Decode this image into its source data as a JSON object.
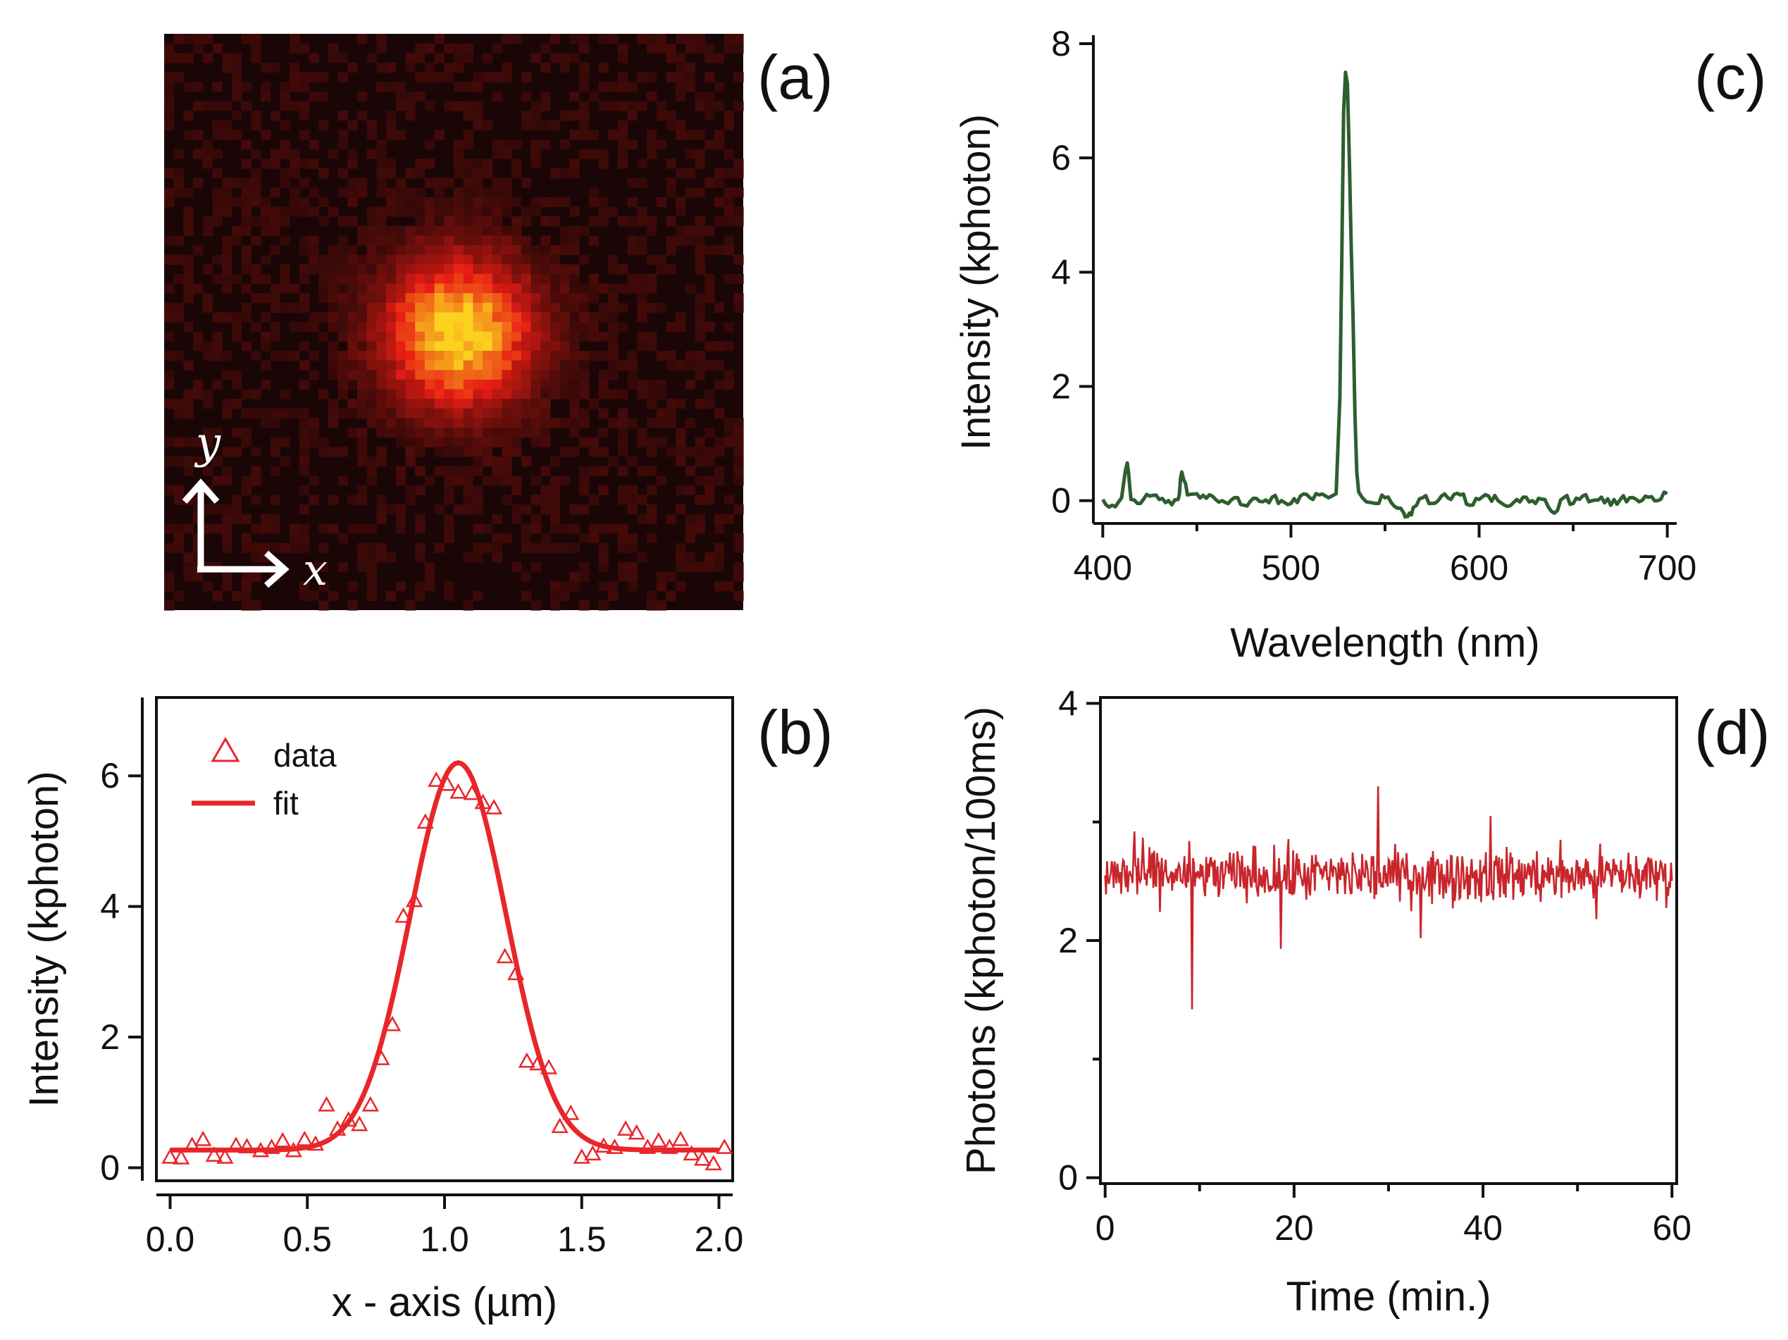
{
  "panels": {
    "a": {
      "label": "(a)"
    },
    "b": {
      "label": "(b)"
    },
    "c": {
      "label": "(c)"
    },
    "d": {
      "label": "(d)"
    }
  },
  "image_a": {
    "y_label": "y",
    "x_label": "x",
    "grid_size": 60,
    "spot_center": [
      0.51,
      0.52
    ],
    "spot_sigma": 0.085,
    "colors": {
      "background": "#1a0606",
      "mid": "#e81c14",
      "peak": "#fbd21e"
    }
  },
  "chart_data": [
    {
      "type": "scatter",
      "panel": "b",
      "xlabel": "x - axis (µm)",
      "ylabel": "Intensity (kphoton)",
      "xlim": [
        -0.05,
        2.05
      ],
      "ylim": [
        -0.2,
        7.2
      ],
      "xticks": [
        "0.0",
        "0.5",
        "1.0",
        "1.5",
        "2.0"
      ],
      "xtick_values": [
        0,
        0.5,
        1.0,
        1.5,
        2.0
      ],
      "yticks": [
        "0",
        "2",
        "4",
        "6"
      ],
      "ytick_values": [
        0,
        2,
        4,
        6
      ],
      "legend": [
        "data",
        "fit"
      ],
      "legend_position": "top-left",
      "color": "#e8262a",
      "series": [
        {
          "name": "data",
          "style": "open-triangles",
          "x": [
            0.0,
            0.04,
            0.08,
            0.12,
            0.16,
            0.2,
            0.24,
            0.28,
            0.33,
            0.37,
            0.41,
            0.45,
            0.49,
            0.53,
            0.57,
            0.61,
            0.65,
            0.69,
            0.73,
            0.77,
            0.81,
            0.85,
            0.89,
            0.93,
            0.97,
            1.01,
            1.05,
            1.1,
            1.14,
            1.18,
            1.22,
            1.26,
            1.3,
            1.34,
            1.38,
            1.42,
            1.46,
            1.5,
            1.54,
            1.58,
            1.62,
            1.66,
            1.7,
            1.74,
            1.78,
            1.82,
            1.86,
            1.9,
            1.94,
            1.98,
            2.02
          ],
          "y": [
            0.15,
            0.14,
            0.33,
            0.42,
            0.18,
            0.15,
            0.33,
            0.31,
            0.25,
            0.3,
            0.4,
            0.25,
            0.42,
            0.35,
            0.95,
            0.58,
            0.72,
            0.65,
            0.95,
            1.66,
            2.18,
            3.84,
            4.08,
            5.28,
            5.92,
            5.86,
            5.74,
            5.72,
            5.58,
            5.5,
            3.22,
            2.96,
            1.62,
            1.58,
            1.52,
            0.62,
            0.82,
            0.15,
            0.2,
            0.32,
            0.3,
            0.58,
            0.52,
            0.3,
            0.4,
            0.3,
            0.42,
            0.2,
            0.12,
            0.05,
            0.3
          ]
        },
        {
          "name": "fit",
          "style": "line",
          "model": "gaussian",
          "offset": 0.27,
          "amplitude": 5.93,
          "center": 1.05,
          "sigma": 0.175,
          "x_range": [
            0.0,
            2.0
          ]
        }
      ]
    },
    {
      "type": "line",
      "panel": "c",
      "xlabel": "Wavelength (nm)",
      "ylabel": "Intensity (kphoton)",
      "xlim": [
        395,
        705
      ],
      "ylim": [
        -0.4,
        8.05
      ],
      "xticks": [
        "400",
        "500",
        "600",
        "700"
      ],
      "xtick_values": [
        400,
        500,
        600,
        700
      ],
      "yticks": [
        "0",
        "2",
        "4",
        "6",
        "8"
      ],
      "ytick_values": [
        0,
        2,
        4,
        6,
        8
      ],
      "color": "#2e5e2e",
      "series": [
        {
          "x": [
            400,
            405,
            410,
            413,
            415,
            420,
            425,
            430,
            435,
            440,
            442,
            445,
            450,
            455,
            460,
            465,
            470,
            475,
            480,
            485,
            490,
            495,
            500,
            505,
            510,
            515,
            520,
            524,
            526,
            527,
            528,
            529,
            530,
            531,
            532,
            533,
            534,
            535,
            536,
            538,
            540,
            545,
            550,
            555,
            560,
            562,
            565,
            570,
            575,
            580,
            585,
            590,
            595,
            600,
            605,
            610,
            615,
            620,
            625,
            630,
            635,
            640,
            645,
            650,
            655,
            660,
            665,
            670,
            675,
            680,
            685,
            690,
            695,
            700
          ],
          "y": [
            0.02,
            -0.08,
            0.05,
            0.66,
            0.02,
            -0.05,
            0.08,
            0.02,
            0.0,
            0.02,
            0.5,
            0.1,
            0.12,
            0.04,
            0.02,
            -0.03,
            0.05,
            -0.08,
            0.04,
            -0.02,
            0.06,
            0.0,
            -0.05,
            0.08,
            0.05,
            0.1,
            0.05,
            0.12,
            1.8,
            4.2,
            6.8,
            7.5,
            7.3,
            6.0,
            4.5,
            3.2,
            1.5,
            0.5,
            0.15,
            0.05,
            -0.02,
            -0.05,
            0.05,
            -0.1,
            -0.22,
            -0.28,
            -0.12,
            0.05,
            -0.05,
            0.08,
            0.02,
            0.1,
            -0.08,
            0.02,
            0.08,
            0.0,
            -0.1,
            0.02,
            0.06,
            -0.05,
            0.02,
            -0.22,
            0.05,
            -0.05,
            0.08,
            0.0,
            0.06,
            -0.08,
            0.02,
            0.05,
            -0.02,
            0.06,
            0.0,
            0.12
          ]
        }
      ]
    },
    {
      "type": "line",
      "panel": "d",
      "xlabel": "Time  (min.)",
      "ylabel": "Photons (kphoton/100ms)",
      "xlim": [
        -0.5,
        60.5
      ],
      "ylim": [
        -0.05,
        4.05
      ],
      "xticks": [
        "0",
        "20",
        "40",
        "60"
      ],
      "xtick_values": [
        0,
        20,
        40,
        60
      ],
      "yticks": [
        "0",
        "2",
        "4"
      ],
      "ytick_values": [
        0,
        2,
        4
      ],
      "color": "#c8262c",
      "series": [
        {
          "style": "noisy-trace",
          "mean": 2.55,
          "noise_amplitude": 0.14,
          "points": 600,
          "spikes": [
            {
              "x": 9.2,
              "y": 1.42
            },
            {
              "x": 18.6,
              "y": 1.93
            },
            {
              "x": 28.9,
              "y": 3.3
            },
            {
              "x": 33.4,
              "y": 2.02
            },
            {
              "x": 40.8,
              "y": 3.05
            },
            {
              "x": 3.1,
              "y": 2.92
            },
            {
              "x": 52.0,
              "y": 2.18
            }
          ]
        }
      ]
    }
  ]
}
